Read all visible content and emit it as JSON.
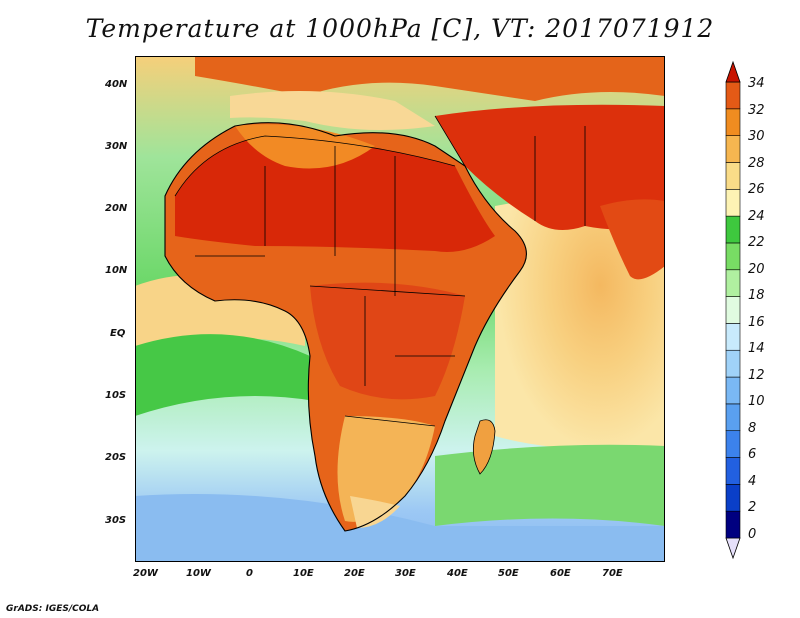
{
  "title": "Temperature at 1000hPa [C], VT: 2017071912",
  "footer": "GrADS: IGES/COLA",
  "map": {
    "lon_labels": [
      "20W",
      "10W",
      "0",
      "10E",
      "20E",
      "30E",
      "40E",
      "50E",
      "60E",
      "70E"
    ],
    "lat_labels": [
      "40N",
      "30N",
      "20N",
      "10N",
      "EQ",
      "10S",
      "20S",
      "30S"
    ],
    "lon_range": [
      -23,
      80
    ],
    "lat_range": [
      -37,
      45
    ]
  },
  "colorbar": {
    "levels": [
      "34",
      "32",
      "30",
      "28",
      "26",
      "24",
      "22",
      "20",
      "18",
      "16",
      "14",
      "12",
      "10",
      "8",
      "6",
      "4",
      "2",
      "0"
    ],
    "colors": [
      "#000080",
      "#0a3fc8",
      "#2260e0",
      "#3c82ec",
      "#5aa0f0",
      "#7ab8f4",
      "#a0d2f8",
      "#c8eafc",
      "#e0fbe0",
      "#b0f0a0",
      "#78dc64",
      "#3ec83e",
      "#fdf3b4",
      "#fadc88",
      "#f6b650",
      "#f08c20",
      "#e45a16",
      "#dc2a0a",
      "#c81400"
    ]
  }
}
